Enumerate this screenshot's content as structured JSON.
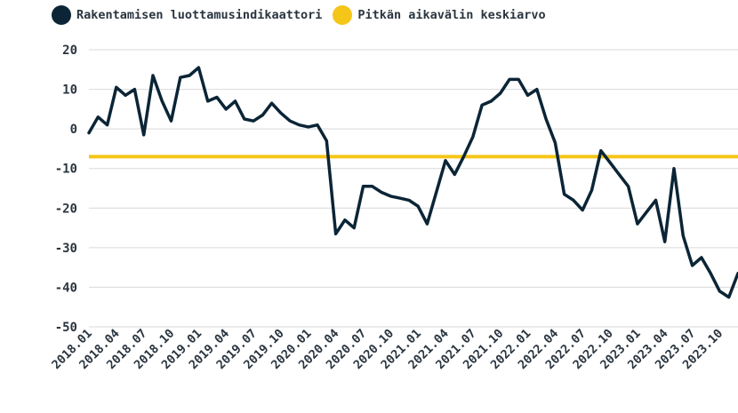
{
  "chart_data": {
    "type": "line",
    "legend_position": "top-left",
    "grid": true,
    "ylim": [
      -50,
      20
    ],
    "yticks": [
      20,
      10,
      0,
      -10,
      -20,
      -30,
      -40,
      -50
    ],
    "x_range": [
      "2018.01",
      "2024.01"
    ],
    "xtick_labels": [
      "2018.01",
      "2018.04",
      "2018.07",
      "2018.10",
      "2019.01",
      "2019.04",
      "2019.07",
      "2019.10",
      "2020.01",
      "2020.04",
      "2020.07",
      "2020.10",
      "2021.01",
      "2021.04",
      "2021.07",
      "2021.10",
      "2022.01",
      "2022.04",
      "2022.07",
      "2022.10",
      "2023.01",
      "2023.04",
      "2023.07",
      "2023.10"
    ],
    "series": [
      {
        "name": "Rakentamisen luottamusindikaattori",
        "color": "#0b2536",
        "values": [
          -1,
          3,
          1,
          10.5,
          8.5,
          10,
          -1.5,
          13.5,
          7,
          2,
          13,
          13.5,
          15.5,
          7,
          8,
          5,
          7,
          2.5,
          2,
          3.5,
          6.5,
          4,
          2,
          1,
          0.5,
          1,
          -3,
          -26.5,
          -23,
          -25,
          -14.5,
          -14.5,
          -16,
          -17,
          -17.5,
          -18,
          -19.5,
          -24,
          -16,
          -8,
          -11.5,
          -7,
          -2,
          6,
          7,
          9,
          12.5,
          12.5,
          8.5,
          10,
          2.5,
          -3.5,
          -16.5,
          -18,
          -20.5,
          -15.5,
          -5.5,
          -8.5,
          -11.5,
          -14.5,
          -24,
          -21,
          -18,
          -28.5,
          -10,
          -27,
          -34.5,
          -32.5,
          -36.5,
          -41,
          -42.5,
          -36.5
        ]
      },
      {
        "name": "Pitkän aikavälin keskiarvo",
        "color": "#f5c518",
        "values": [
          -7
        ]
      }
    ]
  }
}
